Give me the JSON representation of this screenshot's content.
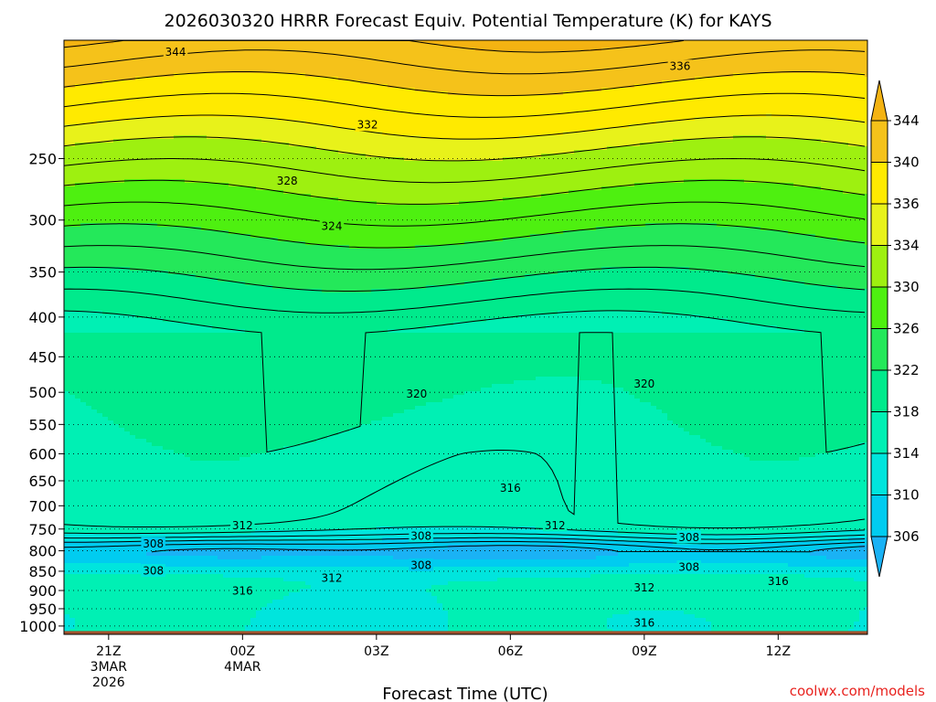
{
  "chart_data": {
    "type": "contour",
    "title": "2026030320 HRRR Forecast Equiv. Potential Temperature (K) for KAYS",
    "xlabel": "Forecast Time (UTC)",
    "ylabel": "",
    "credit": "coolwx.com/models",
    "x_ticks": [
      {
        "line1": "21Z",
        "line2": "3MAR",
        "line3": "2026",
        "hour": 0
      },
      {
        "line1": "00Z",
        "line2": "4MAR",
        "line3": "",
        "hour": 3
      },
      {
        "line1": "03Z",
        "line2": "",
        "line3": "",
        "hour": 6
      },
      {
        "line1": "06Z",
        "line2": "",
        "line3": "",
        "hour": 9
      },
      {
        "line1": "09Z",
        "line2": "",
        "line3": "",
        "hour": 12
      },
      {
        "line1": "12Z",
        "line2": "",
        "line3": "",
        "hour": 15
      }
    ],
    "xlim": [
      -1,
      17
    ],
    "y_ticks": [
      "250",
      "300",
      "350",
      "400",
      "450",
      "500",
      "550",
      "600",
      "650",
      "700",
      "750",
      "800",
      "850",
      "900",
      "950",
      "1000"
    ],
    "y_scale": "log-pressure",
    "ylim": [
      1025,
      176
    ],
    "grid": "dotted horizontal lines at each pressure level",
    "colorbar": {
      "levels": [
        306,
        310,
        314,
        318,
        322,
        326,
        330,
        334,
        336,
        340,
        344
      ],
      "labels": [
        "344",
        "340",
        "336",
        "334",
        "330",
        "326",
        "322",
        "318",
        "314",
        "310",
        "306"
      ],
      "colors": [
        "#1ab2f5",
        "#00ccf0",
        "#00e5dd",
        "#00f0b4",
        "#00ea8c",
        "#24e85a",
        "#4ef010",
        "#9ef010",
        "#e8f21a",
        "#ffea00",
        "#f5c21a",
        "#f4b312"
      ]
    },
    "contour_labels": [
      {
        "text": "344",
        "hour": 1.5,
        "p": 182
      },
      {
        "text": "336",
        "hour": 12.8,
        "p": 190
      },
      {
        "text": "332",
        "hour": 5.8,
        "p": 226
      },
      {
        "text": "328",
        "hour": 4.0,
        "p": 267
      },
      {
        "text": "324",
        "hour": 5.0,
        "p": 305
      },
      {
        "text": "320",
        "hour": 6.9,
        "p": 502
      },
      {
        "text": "320",
        "hour": 12.0,
        "p": 487
      },
      {
        "text": "316",
        "hour": 9.0,
        "p": 663
      },
      {
        "text": "312",
        "hour": 3.0,
        "p": 741
      },
      {
        "text": "312",
        "hour": 10.0,
        "p": 741
      },
      {
        "text": "308",
        "hour": 1.0,
        "p": 783
      },
      {
        "text": "308",
        "hour": 7.0,
        "p": 765
      },
      {
        "text": "308",
        "hour": 13.0,
        "p": 768
      },
      {
        "text": "308",
        "hour": 1.0,
        "p": 848
      },
      {
        "text": "308",
        "hour": 7.0,
        "p": 834
      },
      {
        "text": "308",
        "hour": 13.0,
        "p": 839
      },
      {
        "text": "312",
        "hour": 5.0,
        "p": 867
      },
      {
        "text": "312",
        "hour": 12.0,
        "p": 891
      },
      {
        "text": "316",
        "hour": 3.0,
        "p": 900
      },
      {
        "text": "316",
        "hour": 15.0,
        "p": 875
      },
      {
        "text": "316",
        "hour": 12.0,
        "p": 990
      }
    ]
  }
}
